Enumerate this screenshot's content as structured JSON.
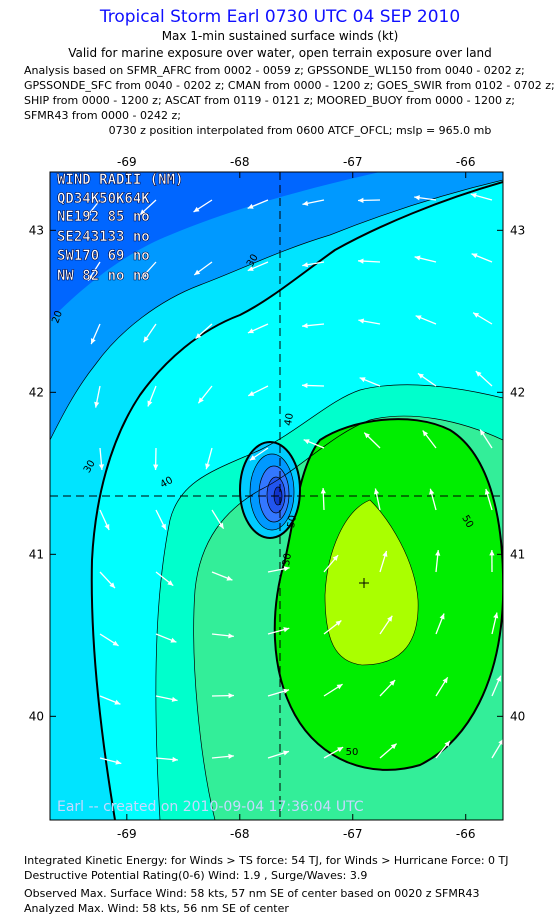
{
  "header": {
    "title": "Tropical Storm Earl 0730 UTC 04 SEP 2010",
    "subtitle": "Max 1-min sustained surface winds (kt)",
    "validity": "Valid for marine exposure over water, open terrain exposure over land",
    "analysis_lines": [
      "Analysis based on SFMR_AFRC from 0002 - 0059 z; GPSSONDE_WL150 from 0040 - 0202 z;",
      "GPSSONDE_SFC from 0040 - 0202 z; CMAN from 0000 - 1200 z; GOES_SWIR from 0102 - 0702 z;",
      "SHIP from 0000 - 1200 z; ASCAT from 0119 - 0121 z; MOORED_BUOY from 0000 - 1200 z;",
      "SFMR43 from 0000 - 0242 z;"
    ],
    "position_note": "0730 z position interpolated from 0600 ATCF_OFCL; mslp = 965.0 mb"
  },
  "map": {
    "xlim": [
      -69.68,
      -65.67
    ],
    "ylim": [
      39.36,
      43.36
    ],
    "xticks": [
      -69,
      -68,
      -67,
      -66
    ],
    "yticks": [
      40,
      41,
      42,
      43
    ],
    "wind_radii": [
      "WIND RADII (NM)",
      "QD34K50K64K",
      "NE192 85 no",
      "SE243133 no",
      "SW170 69 no",
      "NW 82 no no"
    ],
    "contour_labels": [
      20,
      30,
      30,
      40,
      40,
      50,
      50,
      50,
      30
    ],
    "watermark": "Earl -- created on 2010-09-04 17:36:04 UTC"
  },
  "footer": [
    "Integrated Kinetic Energy:  for Winds > TS force: 54 TJ,  for Winds > Hurricane Force: 0 TJ",
    "Destructive Potential Rating(0-6)  Wind: 1.9 , Surge/Waves: 3.9",
    "Observed Max. Surface Wind: 58 kts, 57 nm SE of center based on 0020 z SFMR43",
    "Analyzed Max. Wind: 58 kts, 56 nm SE of center"
  ]
}
